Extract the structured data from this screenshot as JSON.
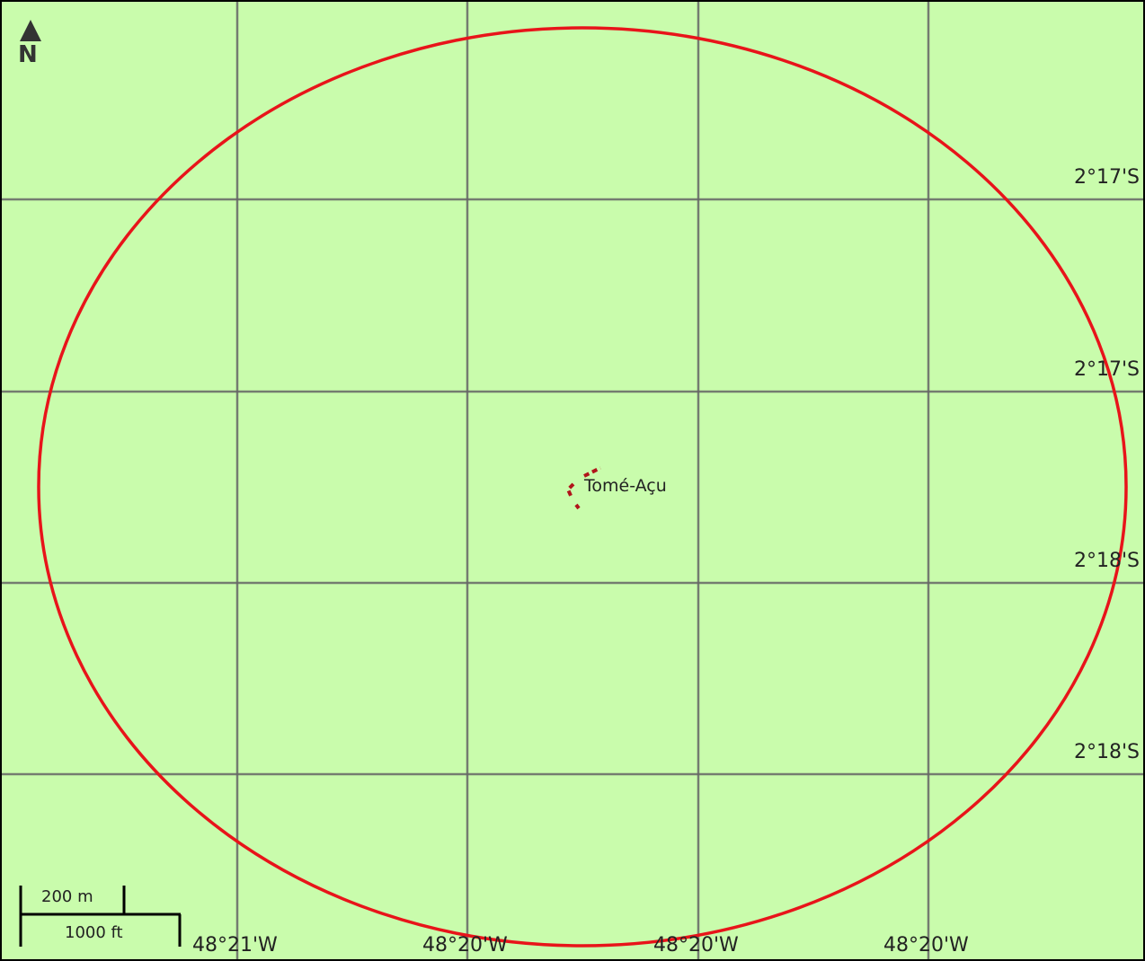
{
  "place": {
    "name": "Tomé-Açu"
  },
  "north": {
    "letter": "N"
  },
  "latitude_labels": [
    "2°17'S",
    "2°17'S",
    "2°18'S",
    "2°18'S"
  ],
  "longitude_labels": [
    "48°21'W",
    "48°20'W",
    "48°20'W",
    "48°20'W"
  ],
  "scale_bar": {
    "metric_label": "200 m",
    "imperial_label": "1000 ft"
  },
  "colors": {
    "land": "#c9fcac",
    "grid": "#666666",
    "boundary_circle": "#e8141a",
    "settlement": "#b0141a"
  }
}
